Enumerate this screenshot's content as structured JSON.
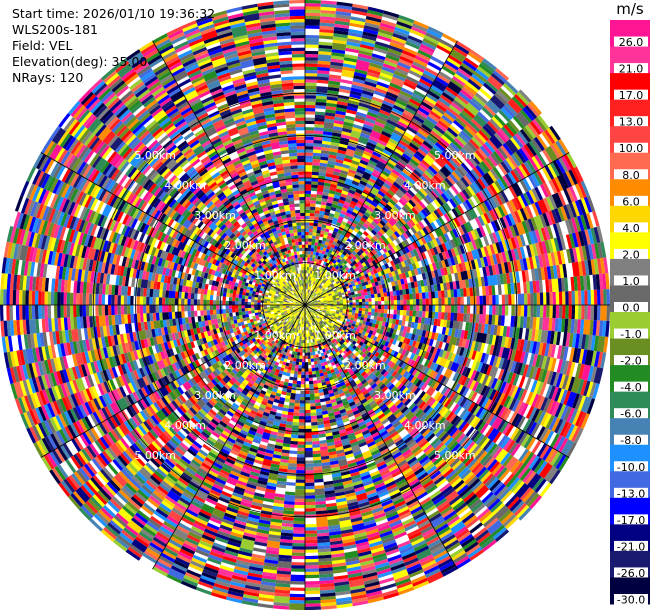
{
  "info": {
    "start_time": "Start time: 2026/01/10 19:36:32",
    "instrument": "WLS200s-181",
    "field": "Field: VEL",
    "elevation": "Elevation(deg): 35.00",
    "nrays": "NRays: 120"
  },
  "chart_data": {
    "type": "heatmap",
    "projection": "polar-ppi",
    "field": "VEL",
    "n_rays": 120,
    "range_rings_km": [
      1,
      2,
      3,
      4,
      5
    ],
    "range_ring_labels": [
      "1.00km",
      "2.00km",
      "3.00km",
      "4.00km",
      "5.00km"
    ],
    "max_range_km": 7.2,
    "colorbar": {
      "unit": "m/s",
      "ticks": [
        "26.0",
        "21.0",
        "17.0",
        "13.0",
        "10.0",
        "8.0",
        "6.0",
        "4.0",
        "2.0",
        "1.0",
        "0.0",
        "-1.0",
        "-2.0",
        "-4.0",
        "-6.0",
        "-8.0",
        "-10.0",
        "-13.0",
        "-17.0",
        "-21.0",
        "-26.0",
        "-30.0"
      ],
      "colors": [
        "#ff1493",
        "#ff3399",
        "#ff0000",
        "#ff2020",
        "#ff4444",
        "#ff6a50",
        "#ff8c00",
        "#ffd700",
        "#ffff00",
        "#808080",
        "#696969",
        "#9acd32",
        "#6b8e23",
        "#228b22",
        "#2e8b57",
        "#4682b4",
        "#1e90ff",
        "#4169e1",
        "#0000ff",
        "#000080",
        "#191970",
        "#000040"
      ]
    }
  }
}
